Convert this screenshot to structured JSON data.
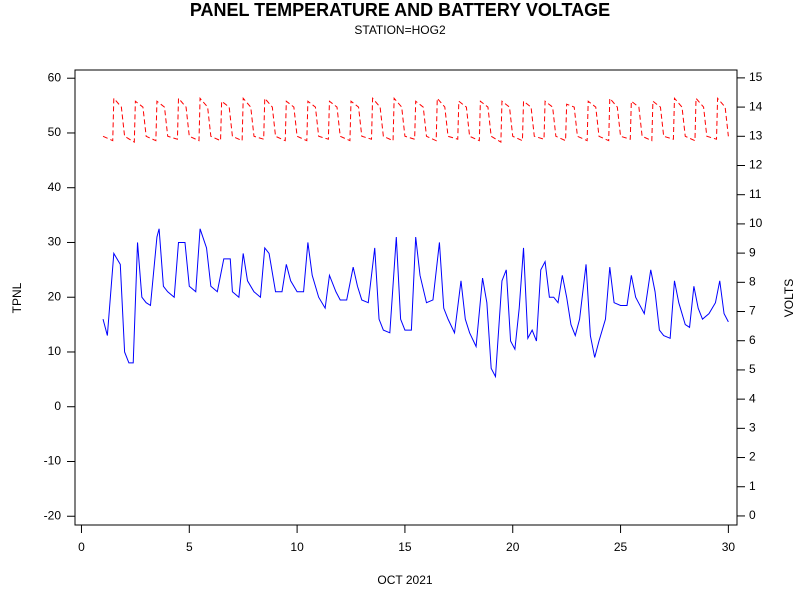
{
  "chart_data": {
    "type": "line",
    "title": "PANEL TEMPERATURE AND BATTERY VOLTAGE",
    "subtitle": "STATION=HOG2",
    "xlabel": "OCT 2021",
    "ylabel": "TPNL",
    "y2label": "VOLTS",
    "xlim": [
      -0.3,
      30.4
    ],
    "xticks": [
      0,
      5,
      10,
      15,
      20,
      25,
      30
    ],
    "ylim": [
      -21.6,
      61.5
    ],
    "yticks": [
      -20,
      -10,
      0,
      10,
      20,
      30,
      40,
      50,
      60
    ],
    "y2lim": [
      -0.31,
      15.27
    ],
    "y2ticks": [
      0,
      1,
      2,
      3,
      4,
      5,
      6,
      7,
      8,
      9,
      10,
      11,
      12,
      13,
      14,
      15
    ],
    "series": [
      {
        "name": "TPNL",
        "color": "#0000ff",
        "dash": false,
        "x": [
          1.0,
          1.2,
          1.5,
          1.8,
          2.0,
          2.2,
          2.4,
          2.6,
          2.8,
          3.0,
          3.2,
          3.5,
          3.6,
          3.8,
          4.0,
          4.3,
          4.5,
          4.8,
          5.0,
          5.3,
          5.5,
          5.8,
          6.0,
          6.3,
          6.6,
          6.9,
          7.0,
          7.3,
          7.5,
          7.7,
          8.0,
          8.3,
          8.5,
          8.7,
          9.0,
          9.3,
          9.5,
          9.7,
          10.0,
          10.3,
          10.5,
          10.7,
          11.0,
          11.3,
          11.5,
          11.8,
          12.0,
          12.3,
          12.6,
          12.8,
          13.0,
          13.3,
          13.6,
          13.8,
          14.0,
          14.3,
          14.6,
          14.8,
          15.0,
          15.3,
          15.5,
          15.7,
          16.0,
          16.3,
          16.6,
          16.8,
          17.0,
          17.3,
          17.6,
          17.8,
          18.0,
          18.3,
          18.6,
          18.8,
          19.0,
          19.2,
          19.5,
          19.7,
          19.9,
          20.1,
          20.3,
          20.5,
          20.7,
          20.9,
          21.1,
          21.3,
          21.5,
          21.7,
          21.9,
          22.1,
          22.3,
          22.5,
          22.7,
          22.9,
          23.1,
          23.4,
          23.6,
          23.8,
          24.0,
          24.3,
          24.5,
          24.7,
          25.0,
          25.3,
          25.5,
          25.7,
          25.9,
          26.1,
          26.4,
          26.6,
          26.8,
          27.0,
          27.3,
          27.5,
          27.7,
          28.0,
          28.2,
          28.4,
          28.6,
          28.8,
          29.1,
          29.4,
          29.6,
          29.8,
          30.0
        ],
        "values": [
          16,
          13,
          28,
          26,
          10,
          8,
          8,
          30,
          20,
          19,
          18.5,
          31,
          32.5,
          22,
          21,
          20,
          30,
          30,
          22,
          21,
          32.5,
          29,
          22,
          21,
          27,
          27,
          21,
          20,
          28,
          23,
          21,
          20,
          29,
          28,
          21,
          21,
          26,
          23,
          21,
          21,
          30,
          24,
          20,
          18,
          24,
          21,
          19.5,
          19.5,
          25.5,
          22,
          19.5,
          19,
          29,
          16,
          14,
          13.5,
          31,
          16,
          14,
          14,
          31,
          24,
          19,
          19.5,
          30,
          18,
          16,
          13.5,
          23,
          16,
          13.5,
          11,
          23.5,
          19,
          7,
          5.5,
          23,
          25,
          12,
          10.5,
          18,
          29,
          12.5,
          14,
          12,
          25,
          26.5,
          20,
          20,
          19,
          24,
          20,
          15,
          13,
          16,
          26,
          13,
          9,
          12,
          16,
          25.5,
          19,
          18.5,
          18.5,
          24,
          20,
          18.5,
          17,
          25,
          21,
          14,
          13,
          12.5,
          23,
          19,
          15,
          14.5,
          22,
          18,
          16,
          17,
          19,
          23,
          17,
          15.5
        ]
      },
      {
        "name": "VOLTS",
        "color": "#ff0000",
        "dash": true,
        "axis": "y2",
        "x": [
          1.0,
          1.45,
          1.5,
          1.85,
          2.0,
          2.45,
          2.5,
          2.85,
          3.0,
          3.45,
          3.5,
          3.85,
          4.0,
          4.45,
          4.5,
          4.85,
          5.0,
          5.45,
          5.5,
          5.85,
          6.0,
          6.45,
          6.5,
          6.85,
          7.0,
          7.45,
          7.5,
          7.85,
          8.0,
          8.45,
          8.5,
          8.85,
          9.0,
          9.45,
          9.5,
          9.85,
          10.0,
          10.45,
          10.5,
          10.85,
          11.0,
          11.45,
          11.5,
          11.85,
          12.0,
          12.45,
          12.5,
          12.85,
          13.0,
          13.45,
          13.5,
          13.85,
          14.0,
          14.45,
          14.5,
          14.85,
          15.0,
          15.45,
          15.5,
          15.85,
          16.0,
          16.45,
          16.5,
          16.85,
          17.0,
          17.45,
          17.5,
          17.85,
          18.0,
          18.45,
          18.5,
          18.85,
          19.0,
          19.45,
          19.5,
          19.85,
          20.0,
          20.45,
          20.5,
          20.85,
          21.0,
          21.45,
          21.5,
          21.85,
          22.0,
          22.45,
          22.5,
          22.85,
          23.0,
          23.45,
          23.5,
          23.85,
          24.0,
          24.45,
          24.5,
          24.85,
          25.0,
          25.45,
          25.5,
          25.85,
          26.0,
          26.45,
          26.5,
          26.85,
          27.0,
          27.45,
          27.5,
          27.85,
          28.0,
          28.45,
          28.5,
          28.85,
          29.0,
          29.45,
          29.5,
          29.85,
          30.0
        ],
        "values": [
          13.0,
          12.85,
          14.3,
          14.0,
          13.0,
          12.8,
          14.2,
          14.0,
          13.0,
          12.85,
          14.2,
          14.0,
          13.0,
          12.9,
          14.3,
          14.0,
          13.0,
          12.85,
          14.3,
          14.0,
          13.0,
          12.85,
          14.2,
          14.0,
          13.0,
          12.85,
          14.3,
          14.0,
          13.0,
          12.9,
          14.3,
          14.0,
          13.0,
          12.85,
          14.2,
          14.0,
          13.0,
          12.85,
          14.2,
          14.0,
          13.0,
          12.9,
          14.2,
          14.0,
          13.0,
          12.85,
          14.2,
          14.0,
          13.0,
          12.9,
          14.3,
          14.0,
          13.0,
          12.85,
          14.3,
          14.0,
          13.0,
          12.9,
          14.2,
          14.0,
          13.0,
          12.85,
          14.3,
          14.0,
          13.0,
          12.9,
          14.2,
          14.0,
          13.0,
          12.85,
          14.2,
          14.0,
          13.0,
          12.8,
          14.2,
          14.0,
          13.0,
          12.85,
          14.2,
          14.0,
          13.0,
          12.9,
          14.2,
          14.0,
          13.0,
          12.85,
          14.1,
          14.0,
          13.0,
          12.85,
          14.2,
          14.0,
          13.0,
          12.85,
          14.3,
          14.0,
          13.0,
          12.9,
          14.2,
          14.0,
          13.0,
          12.85,
          14.2,
          14.0,
          13.0,
          12.9,
          14.3,
          14.0,
          13.0,
          12.85,
          14.3,
          14.0,
          13.0,
          12.9,
          14.3,
          14.0,
          13.0
        ]
      }
    ]
  }
}
